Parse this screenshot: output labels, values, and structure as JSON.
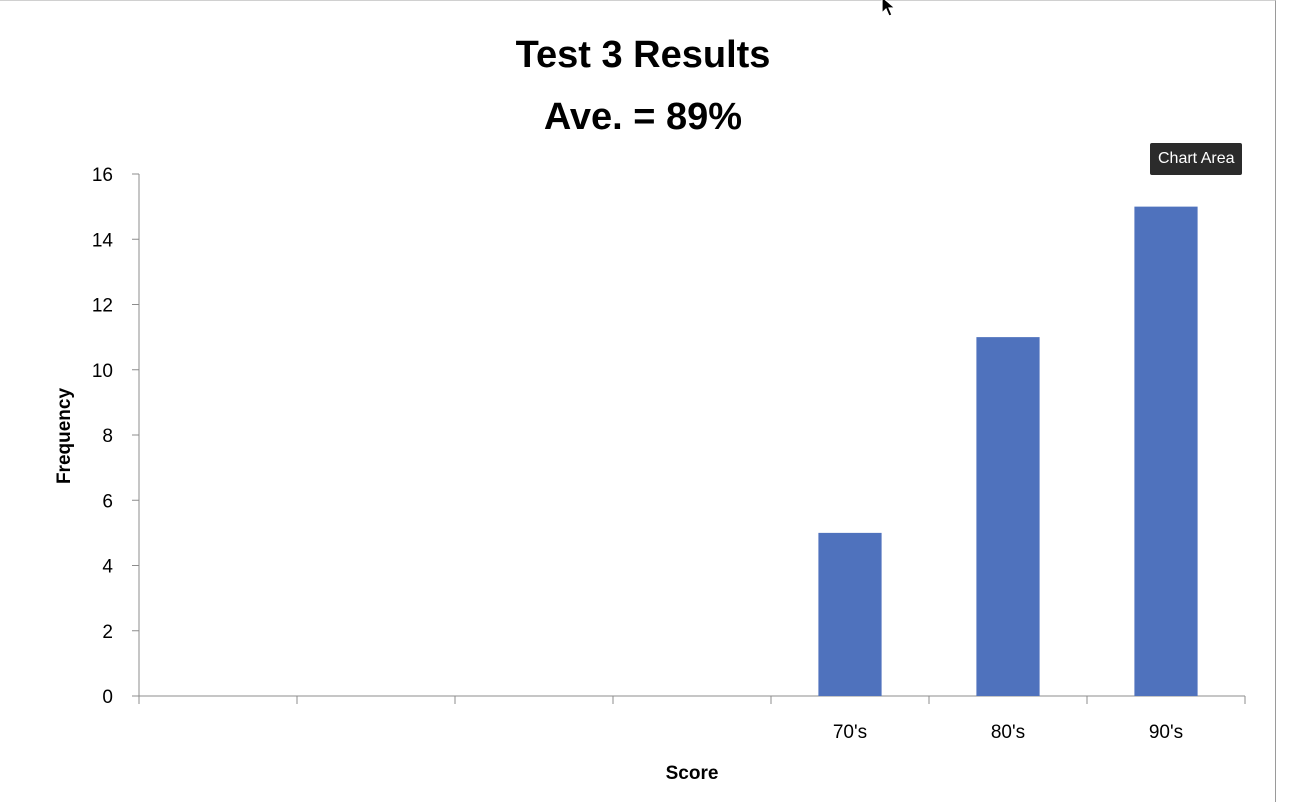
{
  "tooltip": {
    "label": "Chart Area"
  },
  "colors": {
    "bar": "#4f72bd",
    "axis": "#8c8c8c",
    "tooltip_bg": "#2b2b2b"
  },
  "chart_data": {
    "type": "bar",
    "title": "Test 3 Results",
    "subtitle": "Ave. = 89%",
    "xlabel": "Score",
    "ylabel": "Frequency",
    "categories": [
      "",
      "",
      "",
      "",
      "70's",
      "80's",
      "90's"
    ],
    "values": [
      0,
      0,
      0,
      0,
      5,
      11,
      15
    ],
    "ylim": [
      0,
      16
    ],
    "yticks": [
      0,
      2,
      4,
      6,
      8,
      10,
      12,
      14,
      16
    ],
    "grid": false,
    "legend": "none"
  }
}
